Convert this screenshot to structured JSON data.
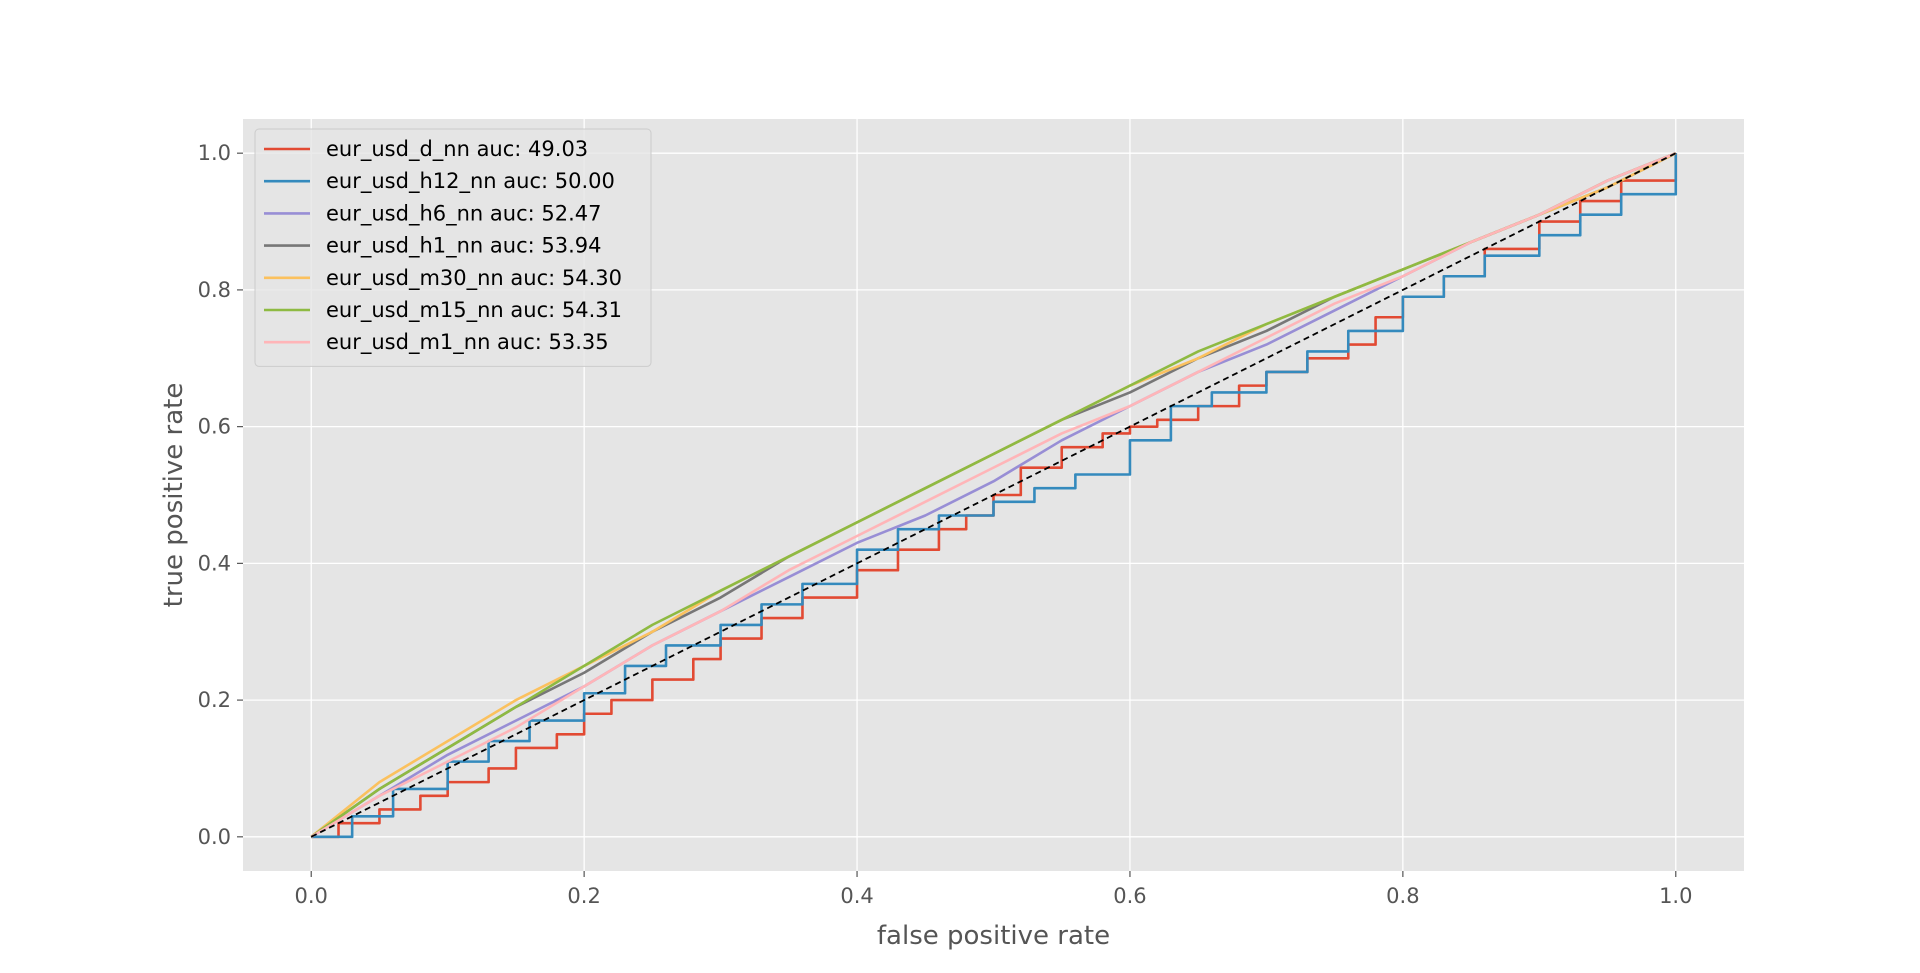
{
  "chart_data": {
    "type": "line",
    "title": "",
    "xlabel": "false positive rate",
    "ylabel": "true positive rate",
    "xlim": [
      -0.05,
      1.05
    ],
    "ylim": [
      -0.05,
      1.05
    ],
    "xticks": [
      0.0,
      0.2,
      0.4,
      0.6,
      0.8,
      1.0
    ],
    "yticks": [
      0.0,
      0.2,
      0.4,
      0.6,
      0.8,
      1.0
    ],
    "xtick_labels": [
      "0.0",
      "0.2",
      "0.4",
      "0.6",
      "0.8",
      "1.0"
    ],
    "ytick_labels": [
      "0.0",
      "0.2",
      "0.4",
      "0.6",
      "0.8",
      "1.0"
    ],
    "grid": true,
    "legend_position": "top-left",
    "background": "#e5e5e5",
    "series": [
      {
        "name": "eur_usd_d_nn auc: 49.03",
        "color": "#e24a33",
        "step": true,
        "x": [
          0.0,
          0.02,
          0.05,
          0.08,
          0.1,
          0.13,
          0.15,
          0.18,
          0.2,
          0.22,
          0.25,
          0.28,
          0.3,
          0.33,
          0.36,
          0.4,
          0.43,
          0.46,
          0.48,
          0.5,
          0.52,
          0.55,
          0.58,
          0.6,
          0.62,
          0.65,
          0.68,
          0.7,
          0.73,
          0.76,
          0.78,
          0.8,
          0.83,
          0.86,
          0.9,
          0.93,
          0.96,
          1.0
        ],
        "y": [
          0.0,
          0.02,
          0.04,
          0.06,
          0.08,
          0.1,
          0.13,
          0.15,
          0.18,
          0.2,
          0.23,
          0.26,
          0.29,
          0.32,
          0.35,
          0.39,
          0.42,
          0.45,
          0.47,
          0.5,
          0.54,
          0.57,
          0.59,
          0.6,
          0.61,
          0.63,
          0.66,
          0.68,
          0.7,
          0.72,
          0.76,
          0.79,
          0.82,
          0.86,
          0.9,
          0.93,
          0.96,
          1.0
        ]
      },
      {
        "name": "eur_usd_h12_nn auc: 50.00",
        "color": "#348abd",
        "step": true,
        "x": [
          0.0,
          0.03,
          0.06,
          0.1,
          0.13,
          0.16,
          0.2,
          0.23,
          0.26,
          0.3,
          0.33,
          0.36,
          0.4,
          0.43,
          0.46,
          0.5,
          0.53,
          0.56,
          0.6,
          0.63,
          0.66,
          0.7,
          0.73,
          0.76,
          0.8,
          0.83,
          0.86,
          0.9,
          0.93,
          0.96,
          1.0
        ],
        "y": [
          0.0,
          0.03,
          0.07,
          0.11,
          0.14,
          0.17,
          0.21,
          0.25,
          0.28,
          0.31,
          0.34,
          0.37,
          0.42,
          0.45,
          0.47,
          0.49,
          0.51,
          0.53,
          0.58,
          0.63,
          0.65,
          0.68,
          0.71,
          0.74,
          0.79,
          0.82,
          0.85,
          0.88,
          0.91,
          0.94,
          1.0
        ]
      },
      {
        "name": "eur_usd_h6_nn auc: 52.47",
        "color": "#988ed5",
        "step": false,
        "x": [
          0.0,
          0.05,
          0.1,
          0.15,
          0.2,
          0.25,
          0.3,
          0.35,
          0.4,
          0.45,
          0.5,
          0.55,
          0.6,
          0.65,
          0.7,
          0.75,
          0.8,
          0.85,
          0.9,
          0.95,
          1.0
        ],
        "y": [
          0.0,
          0.06,
          0.12,
          0.17,
          0.22,
          0.28,
          0.33,
          0.38,
          0.43,
          0.47,
          0.52,
          0.58,
          0.63,
          0.68,
          0.72,
          0.77,
          0.82,
          0.87,
          0.91,
          0.96,
          1.0
        ]
      },
      {
        "name": "eur_usd_h1_nn auc: 53.94",
        "color": "#777777",
        "step": false,
        "x": [
          0.0,
          0.05,
          0.1,
          0.15,
          0.2,
          0.25,
          0.3,
          0.35,
          0.4,
          0.45,
          0.5,
          0.55,
          0.6,
          0.65,
          0.7,
          0.75,
          0.8,
          0.85,
          0.9,
          0.95,
          1.0
        ],
        "y": [
          0.0,
          0.07,
          0.13,
          0.19,
          0.24,
          0.3,
          0.35,
          0.41,
          0.46,
          0.51,
          0.56,
          0.61,
          0.65,
          0.7,
          0.74,
          0.79,
          0.83,
          0.87,
          0.91,
          0.95,
          1.0
        ]
      },
      {
        "name": "eur_usd_m30_nn auc: 54.30",
        "color": "#fbc15e",
        "step": false,
        "x": [
          0.0,
          0.05,
          0.1,
          0.15,
          0.2,
          0.25,
          0.3,
          0.35,
          0.4,
          0.45,
          0.5,
          0.55,
          0.6,
          0.65,
          0.7,
          0.75,
          0.8,
          0.85,
          0.9,
          0.95,
          1.0
        ],
        "y": [
          0.0,
          0.08,
          0.14,
          0.2,
          0.25,
          0.3,
          0.36,
          0.41,
          0.46,
          0.51,
          0.56,
          0.61,
          0.66,
          0.7,
          0.75,
          0.79,
          0.83,
          0.87,
          0.91,
          0.95,
          1.0
        ]
      },
      {
        "name": "eur_usd_m15_nn auc: 54.31",
        "color": "#8eba42",
        "step": false,
        "x": [
          0.0,
          0.05,
          0.1,
          0.15,
          0.2,
          0.25,
          0.3,
          0.35,
          0.4,
          0.45,
          0.5,
          0.55,
          0.6,
          0.65,
          0.7,
          0.75,
          0.8,
          0.85,
          0.9,
          0.95,
          1.0
        ],
        "y": [
          0.0,
          0.07,
          0.13,
          0.19,
          0.25,
          0.31,
          0.36,
          0.41,
          0.46,
          0.51,
          0.56,
          0.61,
          0.66,
          0.71,
          0.75,
          0.79,
          0.83,
          0.87,
          0.91,
          0.96,
          1.0
        ]
      },
      {
        "name": "eur_usd_m1_nn auc: 53.35",
        "color": "#ffb5b8",
        "step": false,
        "x": [
          0.0,
          0.05,
          0.1,
          0.15,
          0.2,
          0.25,
          0.3,
          0.35,
          0.4,
          0.45,
          0.5,
          0.55,
          0.6,
          0.65,
          0.7,
          0.75,
          0.8,
          0.85,
          0.9,
          0.95,
          1.0
        ],
        "y": [
          0.0,
          0.06,
          0.11,
          0.16,
          0.22,
          0.28,
          0.33,
          0.39,
          0.44,
          0.49,
          0.54,
          0.59,
          0.63,
          0.68,
          0.73,
          0.78,
          0.82,
          0.87,
          0.91,
          0.96,
          1.0
        ]
      }
    ],
    "reference_line": {
      "x": [
        0.0,
        1.0
      ],
      "y": [
        0.0,
        1.0
      ],
      "color": "#000000",
      "dashed": true
    }
  }
}
